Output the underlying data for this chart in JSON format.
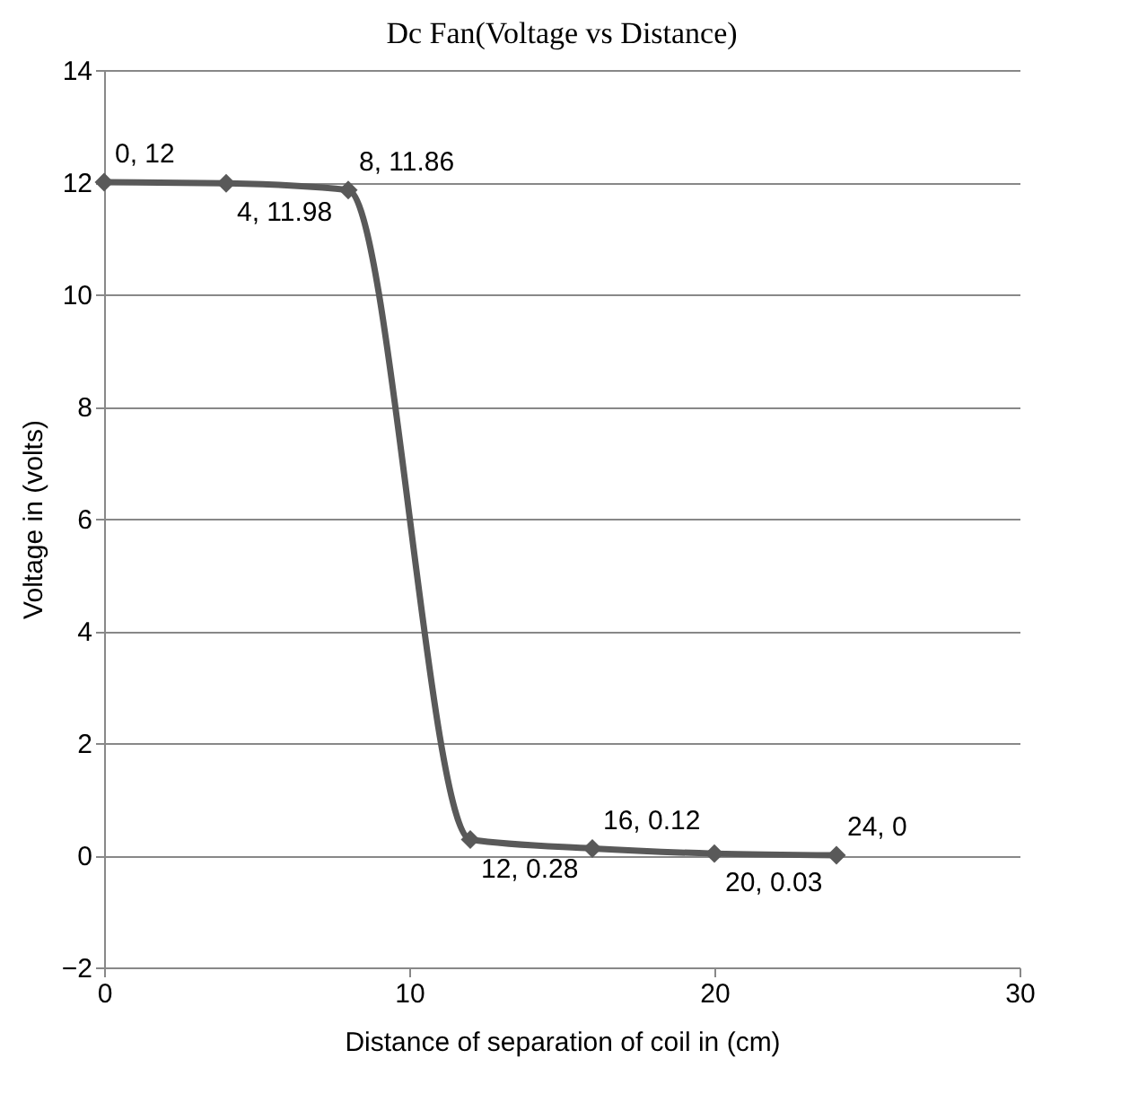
{
  "chart_data": {
    "type": "line",
    "title": "Dc Fan(Voltage vs Distance)",
    "xlabel": "Distance of separation of coil in (cm)",
    "ylabel": "Voltage in (volts)",
    "x": [
      0,
      4,
      8,
      12,
      16,
      20,
      24
    ],
    "series": [
      {
        "color": "#595959",
        "values": [
          12,
          11.98,
          11.86,
          0.28,
          0.12,
          0.03,
          0
        ],
        "value_labels": [
          "0, 12",
          "4, 11.98",
          "8, 11.86",
          "12, 0.28",
          "16, 0.12",
          "20, 0.03",
          "24, 0"
        ]
      }
    ],
    "xlim": [
      0,
      30
    ],
    "xticks": [
      0,
      10,
      20,
      30
    ],
    "ylim": [
      -2,
      14
    ],
    "yticks": [
      -2,
      0,
      2,
      4,
      6,
      8,
      10,
      12,
      14
    ],
    "grid": "y",
    "marker": "diamond",
    "line_style": "solid"
  }
}
